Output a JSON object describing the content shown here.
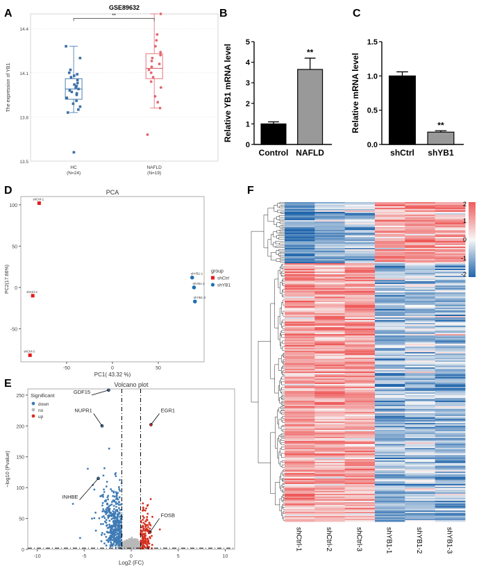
{
  "chart_data": [
    {
      "panel": "A",
      "type": "scatter",
      "title": "GSE89632",
      "ylabel": "The expression of YB1",
      "ylim": [
        13.5,
        14.5
      ],
      "y_ticks": [
        "13.5",
        "13.8",
        "14.1",
        "14.4"
      ],
      "categories": [
        "HC\n(N=24)",
        "NAFLD\n(N=19)"
      ],
      "cat_line1": [
        "HC",
        "NAFLD"
      ],
      "cat_line2": [
        "(N=24)",
        "(N=19)"
      ],
      "significance": "**",
      "colors": [
        "#3b6fa6",
        "#e2666f"
      ],
      "boxes": [
        {
          "name": "HC",
          "q1": 13.92,
          "median": 13.99,
          "q3": 14.06,
          "min": 13.83,
          "max": 14.28
        },
        {
          "name": "NAFLD",
          "q1": 14.06,
          "median": 14.13,
          "q3": 14.23,
          "min": 13.86,
          "max": 14.5
        }
      ],
      "points": [
        {
          "group": "HC",
          "values": [
            14.28,
            14.2,
            14.12,
            14.1,
            14.09,
            14.08,
            14.07,
            14.05,
            14.03,
            14.02,
            14.01,
            14.0,
            13.99,
            13.98,
            13.97,
            13.96,
            13.95,
            13.93,
            13.91,
            13.89,
            13.87,
            13.85,
            13.83,
            13.56
          ]
        },
        {
          "group": "NAFLD",
          "values": [
            14.5,
            14.36,
            14.32,
            14.28,
            14.24,
            14.22,
            14.2,
            14.18,
            14.16,
            14.14,
            14.12,
            14.1,
            14.07,
            14.04,
            14.0,
            13.94,
            13.9,
            13.86,
            13.68
          ]
        }
      ]
    },
    {
      "panel": "B",
      "type": "bar",
      "categories": [
        "Control",
        "NAFLD"
      ],
      "values": [
        1.0,
        3.65
      ],
      "errors": [
        0.1,
        0.55
      ],
      "ylabel": "Relative YB1 mRNA level",
      "ylim": [
        0,
        5
      ],
      "y_ticks": [
        "0",
        "1",
        "2",
        "3",
        "4",
        "5"
      ],
      "significance": "**",
      "colors": [
        "#000000",
        "#999999"
      ]
    },
    {
      "panel": "C",
      "type": "bar",
      "categories": [
        "shCtrl",
        "shYB1"
      ],
      "values": [
        1.0,
        0.18
      ],
      "errors": [
        0.06,
        0.02
      ],
      "ylabel": "Relative mRNA level",
      "ylim": [
        0,
        1.5
      ],
      "y_ticks": [
        "0.0",
        "0.5",
        "1.0",
        "1.5"
      ],
      "significance": "**",
      "colors": [
        "#000000",
        "#999999"
      ]
    },
    {
      "panel": "D",
      "type": "scatter",
      "title": "PCA",
      "xlabel": "PC1( 43.32 %)",
      "ylabel": "PC2(17.66%)",
      "xlim": [
        -100,
        100
      ],
      "ylim": [
        -90,
        110
      ],
      "x_ticks": [
        "-50",
        "0",
        "50"
      ],
      "y_ticks": [
        "-50",
        "0",
        "50",
        "100"
      ],
      "legend_title": "group",
      "legend": [
        "shCtrl",
        "shYB1"
      ],
      "colors": [
        "#e31a1c",
        "#1f6fb4"
      ],
      "points": [
        {
          "label": "shCtrl-1",
          "group": "shCtrl",
          "x": -80,
          "y": 102
        },
        {
          "label": "shCtrl-2",
          "group": "shCtrl",
          "x": -87,
          "y": -10
        },
        {
          "label": "shCtrl-3",
          "group": "shCtrl",
          "x": -90,
          "y": -82
        },
        {
          "label": "shYB1-1",
          "group": "shYB1",
          "x": 87,
          "y": 12
        },
        {
          "label": "shYB1-2",
          "group": "shYB1",
          "x": 89,
          "y": 0
        },
        {
          "label": "shYB1-3",
          "group": "shYB1",
          "x": 90,
          "y": -17
        }
      ]
    },
    {
      "panel": "E",
      "type": "scatter",
      "title": "Volcano plot",
      "xlabel": "Log2 (FC)",
      "ylabel": "−log10 (Pvalue)",
      "xlim": [
        -11,
        11
      ],
      "ylim": [
        0,
        260
      ],
      "x_ticks": [
        "-10",
        "-5",
        "0",
        "5",
        "10"
      ],
      "y_ticks": [
        "0",
        "50",
        "100",
        "150",
        "200",
        "250"
      ],
      "legend_title": "Significant",
      "legend": [
        "down",
        "no",
        "up"
      ],
      "colors": [
        "#3f7bb5",
        "#b8b8b8",
        "#d7301f"
      ],
      "thresholds": {
        "log2fc": [
          -1,
          1
        ],
        "pvalue_line": 2
      },
      "labeled_genes": [
        {
          "gene": "GDF15",
          "x": -2.4,
          "y": 262
        },
        {
          "gene": "NUPR1",
          "x": -3.1,
          "y": 200
        },
        {
          "gene": "EGR1",
          "x": 2.1,
          "y": 202
        },
        {
          "gene": "INHBE",
          "x": -3.5,
          "y": 115
        },
        {
          "gene": "FOSB",
          "x": 2.0,
          "y": 28
        }
      ]
    },
    {
      "panel": "F",
      "type": "heatmap",
      "columns": [
        "shCtrl-1",
        "shCtrl-2",
        "shCtrl-3",
        "shYB1-1",
        "shYB1-2",
        "shYB1-3"
      ],
      "scale": [
        -2,
        2
      ],
      "scale_ticks": [
        "2",
        "1",
        "0",
        "-1",
        "-2"
      ],
      "colors": {
        "low": "#2166ac",
        "mid": "#f7f7f7",
        "high": "#ef5a5a"
      },
      "blocks": [
        {
          "fraction": 0.19,
          "mean": [
            -1.4,
            -1.1,
            -0.6,
            1.1,
            1.1,
            1.1
          ]
        },
        {
          "fraction": 0.81,
          "mean": [
            1.1,
            1.0,
            1.1,
            -0.9,
            -0.6,
            -0.8
          ]
        }
      ]
    }
  ],
  "panel_letters": [
    "A",
    "B",
    "C",
    "D",
    "E",
    "F"
  ]
}
